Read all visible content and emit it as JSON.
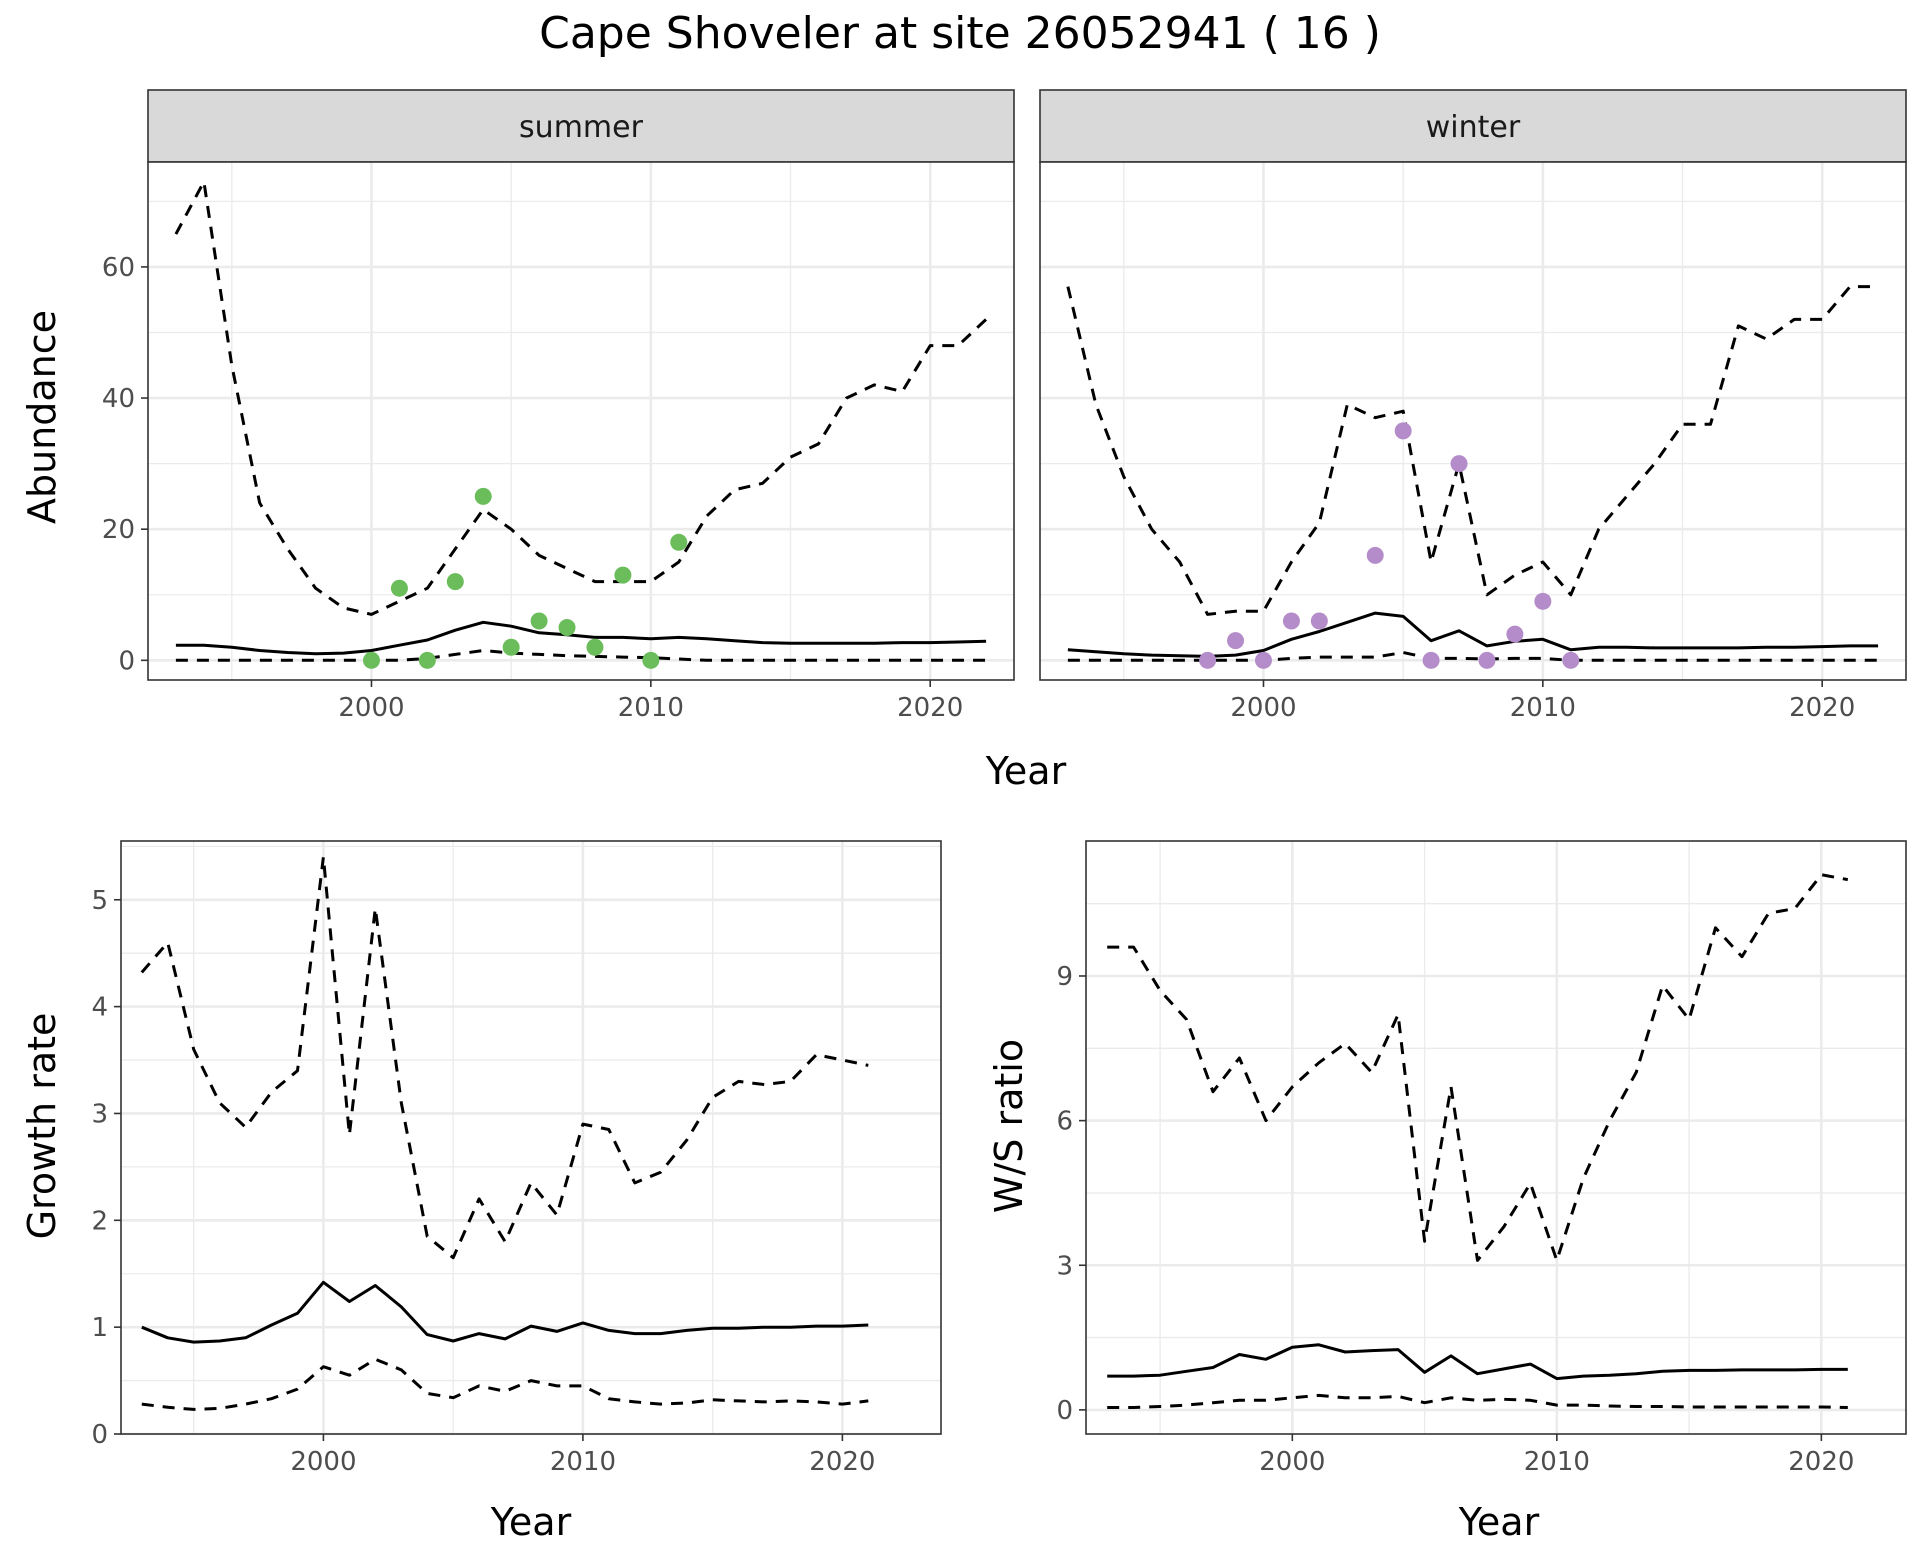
{
  "figure": {
    "title": "Cape Shoveler at site 26052941 ( 16 )"
  },
  "chart_data": [
    {
      "type": "line",
      "panel": "abundance",
      "facets": [
        "summer",
        "winter"
      ],
      "xlabel": "Year",
      "ylabel": "Abundance",
      "xlim": [
        1992,
        2023
      ],
      "ylim": [
        -3,
        76
      ],
      "xticks": [
        2000,
        2010,
        2020
      ],
      "yticks": [
        0,
        20,
        40,
        60
      ],
      "point_colors": {
        "summer": "#6abd5a",
        "winter": "#b48cc9"
      },
      "line_style": {
        "estimate": "solid",
        "bounds": "dashed"
      },
      "summer": {
        "x": [
          1993,
          1994,
          1995,
          1996,
          1997,
          1998,
          1999,
          2000,
          2001,
          2002,
          2003,
          2004,
          2005,
          2006,
          2007,
          2008,
          2009,
          2010,
          2011,
          2012,
          2013,
          2014,
          2015,
          2016,
          2017,
          2018,
          2019,
          2020,
          2021,
          2022
        ],
        "mean": [
          2.3,
          2.3,
          2.0,
          1.5,
          1.2,
          1.0,
          1.1,
          1.5,
          2.3,
          3.1,
          4.6,
          5.8,
          5.2,
          4.2,
          3.9,
          3.5,
          3.5,
          3.3,
          3.5,
          3.3,
          3.0,
          2.7,
          2.6,
          2.6,
          2.6,
          2.6,
          2.7,
          2.7,
          2.8,
          2.9
        ],
        "upper": [
          65,
          73,
          45,
          24,
          17,
          11,
          8,
          7,
          9,
          11,
          17,
          23,
          20,
          16,
          14,
          12,
          12,
          12,
          15,
          22,
          26,
          27,
          31,
          33,
          40,
          42,
          41,
          48,
          48,
          52
        ],
        "lower": [
          0,
          0,
          0,
          0,
          0,
          0,
          0,
          0,
          0,
          0.3,
          0.9,
          1.5,
          1.1,
          0.9,
          0.7,
          0.6,
          0.5,
          0.4,
          0.2,
          0,
          0,
          0,
          0,
          0,
          0,
          0,
          0,
          0,
          0,
          0
        ],
        "obs_x": [
          2000,
          2001,
          2002,
          2003,
          2004,
          2005,
          2006,
          2007,
          2008,
          2009,
          2010,
          2011
        ],
        "obs_y": [
          0,
          11,
          0,
          12,
          25,
          2,
          6,
          5,
          2,
          13,
          0,
          18
        ]
      },
      "winter": {
        "x": [
          1993,
          1994,
          1995,
          1996,
          1997,
          1998,
          1999,
          2000,
          2001,
          2002,
          2003,
          2004,
          2005,
          2006,
          2007,
          2008,
          2009,
          2010,
          2011,
          2012,
          2013,
          2014,
          2015,
          2016,
          2017,
          2018,
          2019,
          2020,
          2021,
          2022
        ],
        "mean": [
          1.6,
          1.3,
          1.0,
          0.8,
          0.7,
          0.6,
          0.8,
          1.5,
          3.2,
          4.4,
          5.8,
          7.2,
          6.7,
          3.0,
          4.5,
          2.2,
          2.9,
          3.2,
          1.6,
          2.0,
          2.0,
          1.9,
          1.9,
          1.9,
          1.9,
          2.0,
          2.0,
          2.1,
          2.2,
          2.2
        ],
        "upper": [
          57,
          39,
          28,
          20,
          15,
          7,
          7.5,
          7.5,
          15,
          21,
          39,
          37,
          38,
          15,
          30,
          10,
          13,
          15,
          10,
          20,
          25,
          30,
          36,
          36,
          51,
          49,
          52,
          52,
          57,
          57
        ],
        "lower": [
          0,
          0,
          0,
          0,
          0,
          0,
          0,
          0,
          0.3,
          0.5,
          0.5,
          0.5,
          1.2,
          0.3,
          0.3,
          0.2,
          0.3,
          0.3,
          0,
          0,
          0,
          0,
          0,
          0,
          0,
          0,
          0,
          0,
          0,
          0
        ],
        "obs_x": [
          1998,
          1999,
          2000,
          2001,
          2002,
          2004,
          2005,
          2006,
          2007,
          2008,
          2009,
          2010,
          2011
        ],
        "obs_y": [
          0,
          3,
          0,
          6,
          6,
          16,
          35,
          0,
          30,
          0,
          4,
          9,
          0
        ]
      }
    },
    {
      "type": "line",
      "panel": "growth",
      "xlabel": "Year",
      "ylabel": "Growth rate",
      "xlim": [
        1992.2,
        2023.8
      ],
      "ylim": [
        0,
        5.55
      ],
      "xticks": [
        2000,
        2010,
        2020
      ],
      "yticks": [
        0,
        1,
        2,
        3,
        4,
        5
      ],
      "line_style": {
        "estimate": "solid",
        "bounds": "dashed"
      },
      "x": [
        1993,
        1994,
        1995,
        1996,
        1997,
        1998,
        1999,
        2000,
        2001,
        2002,
        2003,
        2004,
        2005,
        2006,
        2007,
        2008,
        2009,
        2010,
        2011,
        2012,
        2013,
        2014,
        2015,
        2016,
        2017,
        2018,
        2019,
        2020,
        2021
      ],
      "mean": [
        1.0,
        0.9,
        0.86,
        0.87,
        0.9,
        1.02,
        1.13,
        1.42,
        1.24,
        1.39,
        1.19,
        0.93,
        0.87,
        0.94,
        0.89,
        1.01,
        0.96,
        1.04,
        0.97,
        0.94,
        0.94,
        0.97,
        0.99,
        0.99,
        1.0,
        1.0,
        1.01,
        1.01,
        1.02
      ],
      "upper": [
        4.32,
        4.6,
        3.6,
        3.1,
        2.87,
        3.2,
        3.4,
        5.4,
        2.8,
        4.92,
        3.1,
        1.85,
        1.65,
        2.2,
        1.8,
        2.35,
        2.05,
        2.9,
        2.85,
        2.35,
        2.45,
        2.75,
        3.15,
        3.3,
        3.27,
        3.3,
        3.55,
        3.5,
        3.45
      ],
      "lower": [
        0.28,
        0.25,
        0.23,
        0.24,
        0.28,
        0.33,
        0.42,
        0.63,
        0.55,
        0.7,
        0.6,
        0.38,
        0.34,
        0.45,
        0.4,
        0.5,
        0.45,
        0.45,
        0.33,
        0.3,
        0.28,
        0.29,
        0.32,
        0.31,
        0.3,
        0.31,
        0.3,
        0.28,
        0.31
      ]
    },
    {
      "type": "line",
      "panel": "ws-ratio",
      "xlabel": "Year",
      "ylabel": "W/S ratio",
      "xlim": [
        1992.2,
        2023.2
      ],
      "ylim": [
        -0.5,
        11.8
      ],
      "xticks": [
        2000,
        2010,
        2020
      ],
      "yticks": [
        0,
        3,
        6,
        9
      ],
      "line_style": {
        "estimate": "solid",
        "bounds": "dashed"
      },
      "x": [
        1993,
        1994,
        1995,
        1996,
        1997,
        1998,
        1999,
        2000,
        2001,
        2002,
        2003,
        2004,
        2005,
        2006,
        2007,
        2008,
        2009,
        2010,
        2011,
        2012,
        2013,
        2014,
        2015,
        2016,
        2017,
        2018,
        2019,
        2020,
        2021
      ],
      "mean": [
        0.7,
        0.7,
        0.72,
        0.8,
        0.88,
        1.15,
        1.05,
        1.3,
        1.35,
        1.2,
        1.23,
        1.25,
        0.78,
        1.12,
        0.75,
        0.85,
        0.95,
        0.65,
        0.7,
        0.72,
        0.75,
        0.8,
        0.82,
        0.82,
        0.83,
        0.83,
        0.83,
        0.84,
        0.84
      ],
      "upper": [
        9.6,
        9.6,
        8.7,
        8.1,
        6.6,
        7.3,
        6.0,
        6.7,
        7.2,
        7.6,
        7.0,
        8.2,
        3.5,
        6.7,
        3.1,
        3.8,
        4.7,
        3.1,
        4.8,
        6.0,
        7.0,
        8.8,
        8.1,
        10.0,
        9.4,
        10.3,
        10.4,
        11.1,
        11.0
      ],
      "lower": [
        0.05,
        0.05,
        0.07,
        0.1,
        0.15,
        0.2,
        0.2,
        0.25,
        0.3,
        0.25,
        0.25,
        0.28,
        0.15,
        0.25,
        0.2,
        0.22,
        0.2,
        0.1,
        0.1,
        0.08,
        0.07,
        0.07,
        0.06,
        0.06,
        0.06,
        0.06,
        0.06,
        0.06,
        0.05
      ]
    }
  ]
}
